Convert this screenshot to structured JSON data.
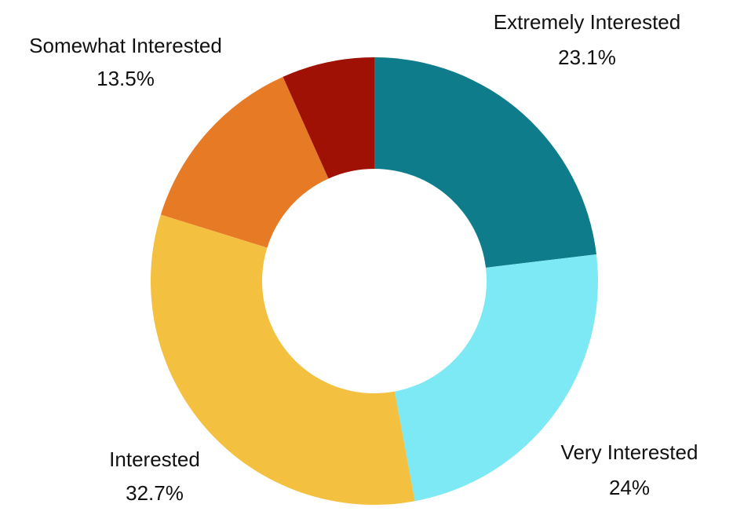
{
  "chart_data": {
    "type": "donut",
    "categories": [
      "Extremely Interested",
      "Very Interested",
      "Interested",
      "Somewhat Interested",
      null
    ],
    "values": [
      23.1,
      24,
      32.7,
      13.5,
      6.7
    ],
    "value_labels": [
      "23.1%",
      "24%",
      "32.7%",
      "13.5%",
      null
    ],
    "colors": [
      "#0e7c8a",
      "#7ce9f5",
      "#f4c03f",
      "#e67a25",
      "#9e1104"
    ]
  }
}
